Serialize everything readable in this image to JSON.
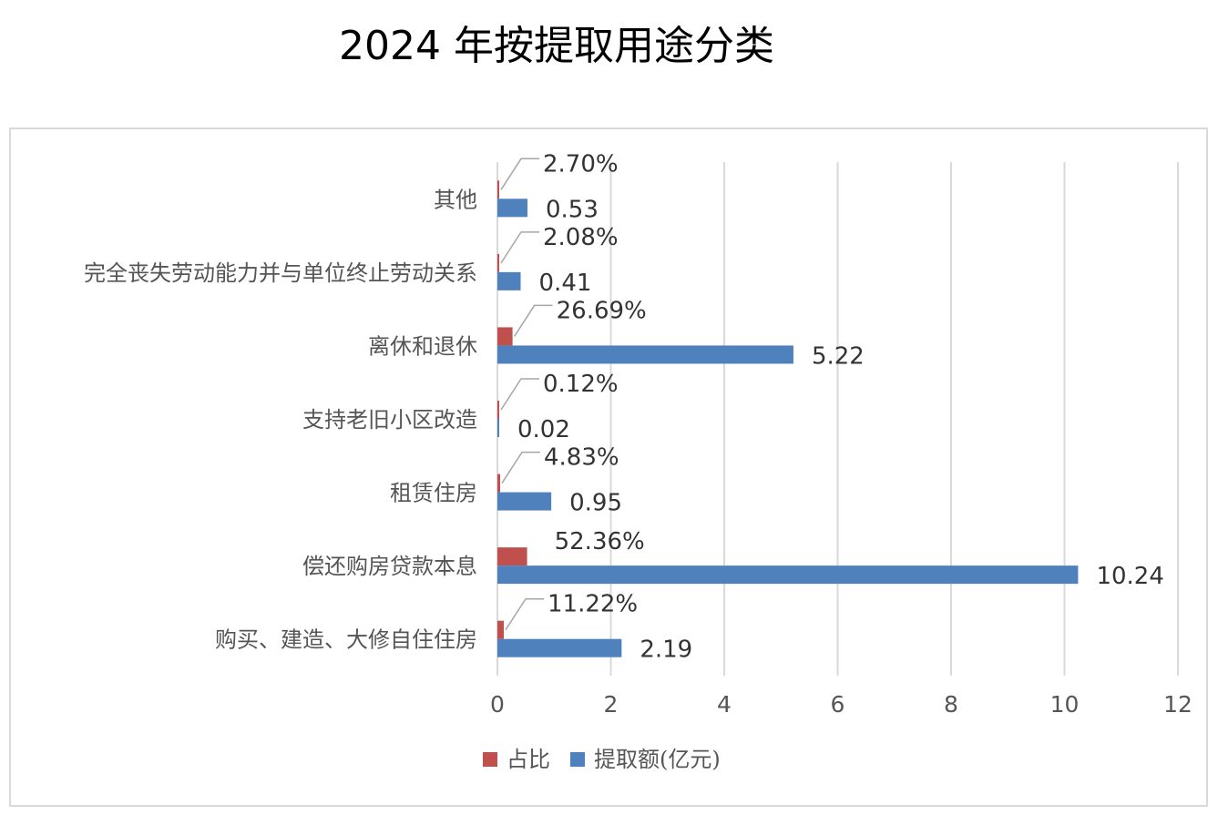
{
  "chart_data": {
    "type": "bar",
    "orientation": "horizontal",
    "title": "2024 年按提取用途分类",
    "categories": [
      "购买、建造、大修自住住房",
      "偿还购房贷款本息",
      "租赁住房",
      "支持老旧小区改造",
      "离休和退休",
      "完全丧失劳动能力并与单位终止劳动关系",
      "其他"
    ],
    "series": [
      {
        "name": "占比",
        "color": "#c0504d",
        "values": [
          0.1122,
          0.5236,
          0.0483,
          0.0012,
          0.2669,
          0.0208,
          0.027
        ],
        "labels": [
          "11.22%",
          "52.36%",
          "4.83%",
          "0.12%",
          "26.69%",
          "2.08%",
          "2.70%"
        ]
      },
      {
        "name": "提取额(亿元)",
        "color": "#4f81bd",
        "values": [
          2.19,
          10.24,
          0.95,
          0.02,
          5.22,
          0.41,
          0.53
        ],
        "labels": [
          "2.19",
          "10.24",
          "0.95",
          "0.02",
          "5.22",
          "0.41",
          "0.53"
        ]
      }
    ],
    "xlim": [
      0,
      12
    ],
    "xticks": [
      "0",
      "2",
      "4",
      "6",
      "8",
      "10",
      "12"
    ],
    "grid": "vertical",
    "legend": "bottom"
  }
}
